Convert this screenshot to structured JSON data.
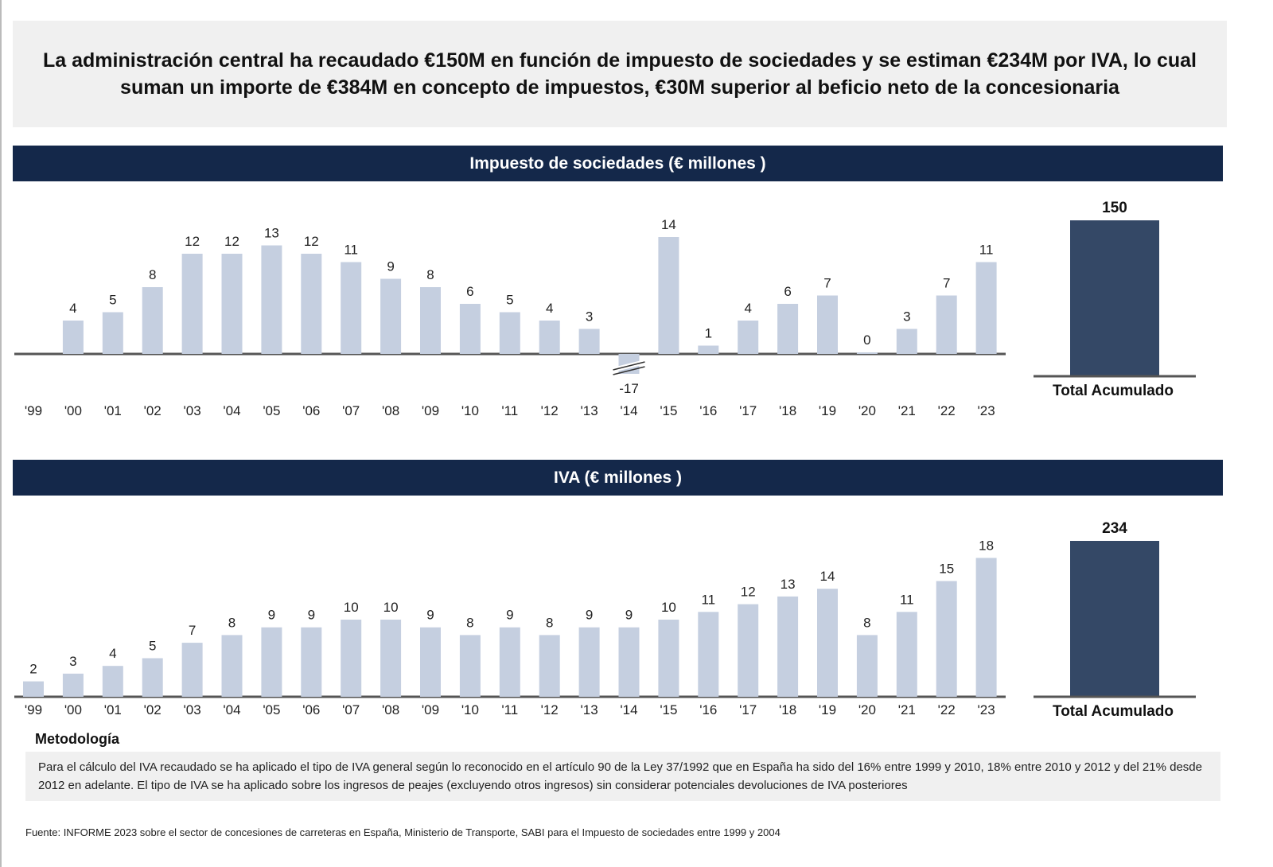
{
  "headline": "La administración central ha recaudado €150M en función de impuesto de sociedades y se estiman €234M por IVA, lo cual suman un importe de €384M en concepto de impuestos, €30M superior al beficio neto de la concesionaria",
  "colors": {
    "band": "#14284a",
    "bar": "#c5cfe0",
    "total_bar": "#344866",
    "axis": "#555555"
  },
  "chart_data": [
    {
      "type": "bar",
      "title": "Impuesto de sociedades (€ millones )",
      "categories": [
        "'99",
        "'00",
        "'01",
        "'02",
        "'03",
        "'04",
        "'05",
        "'06",
        "'07",
        "'08",
        "'09",
        "'10",
        "'11",
        "'12",
        "'13",
        "'14",
        "'15",
        "'16",
        "'17",
        "'18",
        "'19",
        "'20",
        "'21",
        "'22",
        "'23"
      ],
      "values": [
        null,
        4,
        5,
        8,
        12,
        12,
        13,
        12,
        11,
        9,
        8,
        6,
        5,
        4,
        3,
        -17,
        14,
        1,
        4,
        6,
        7,
        0,
        3,
        7,
        11
      ],
      "axis_break": "'14",
      "total": {
        "label": "Total Acumulado",
        "value": 150
      }
    },
    {
      "type": "bar",
      "title": "IVA (€ millones )",
      "categories": [
        "'99",
        "'00",
        "'01",
        "'02",
        "'03",
        "'04",
        "'05",
        "'06",
        "'07",
        "'08",
        "'09",
        "'10",
        "'11",
        "'12",
        "'13",
        "'14",
        "'15",
        "'16",
        "'17",
        "'18",
        "'19",
        "'20",
        "'21",
        "'22",
        "'23"
      ],
      "values": [
        2,
        3,
        4,
        5,
        7,
        8,
        9,
        9,
        10,
        10,
        9,
        8,
        9,
        8,
        9,
        9,
        10,
        11,
        12,
        13,
        14,
        8,
        11,
        15,
        18
      ],
      "total": {
        "label": "Total Acumulado",
        "value": 234
      }
    }
  ],
  "methodology": {
    "title": "Metodología",
    "text": "Para el cálculo del IVA recaudado se ha aplicado el tipo de IVA general según lo reconocido en el artículo 90 de la Ley 37/1992 que en España ha sido del 16% entre 1999 y 2010, 18% entre 2010 y 2012 y del 21% desde 2012 en adelante.  El tipo de IVA se ha aplicado sobre los ingresos de peajes (excluyendo otros ingresos) sin considerar potenciales devoluciones de IVA posteriores"
  },
  "source": "Fuente: INFORME 2023 sobre el sector de concesiones de carreteras en España, Ministerio de Transporte, SABI para el Impuesto de sociedades entre 1999 y 2004"
}
